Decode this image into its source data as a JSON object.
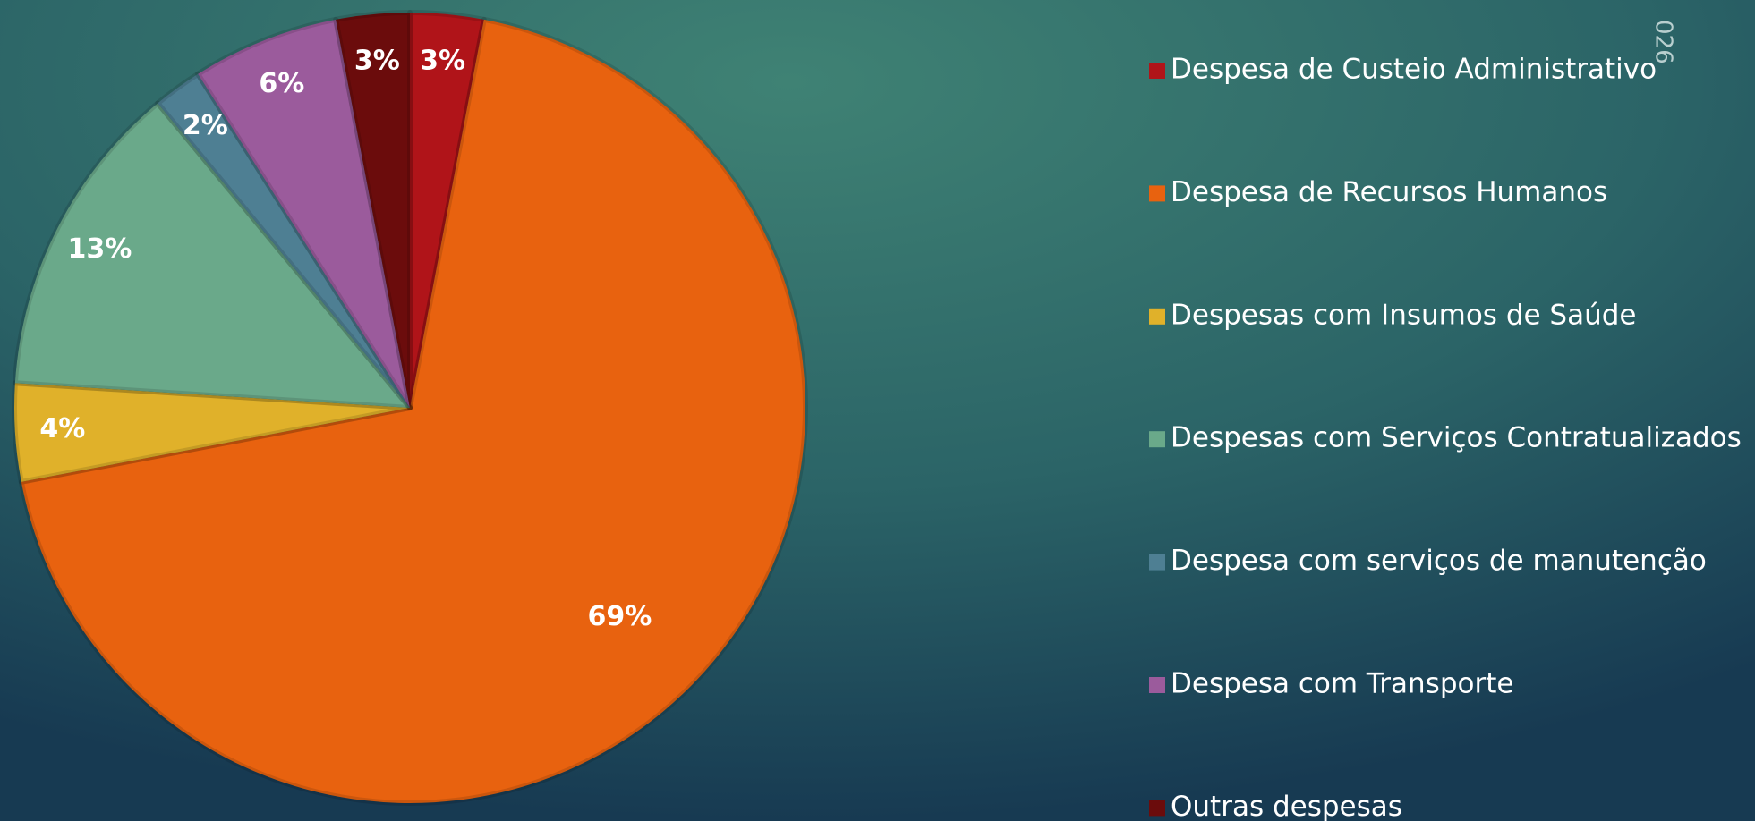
{
  "chart_data": {
    "type": "pie",
    "annotation": "026",
    "categories": [
      "Despesa de Custeio Administrativo",
      "Despesa de Recursos Humanos",
      "Despesas com Insumos de Saúde",
      "Despesas com Serviços Contratualizados",
      "Despesa com serviços de manutenção",
      "Despesa com Transporte",
      "Outras despesas"
    ],
    "values": [
      3,
      69,
      4,
      13,
      2,
      6,
      3
    ],
    "value_labels": [
      "3%",
      "69%",
      "4%",
      "13%",
      "2%",
      "6%",
      "3%"
    ],
    "colors": [
      "#b01419",
      "#e8620f",
      "#e0b12a",
      "#6aa98a",
      "#4e7f93",
      "#9b5b9c",
      "#6b0c0c"
    ],
    "legend": "right"
  }
}
